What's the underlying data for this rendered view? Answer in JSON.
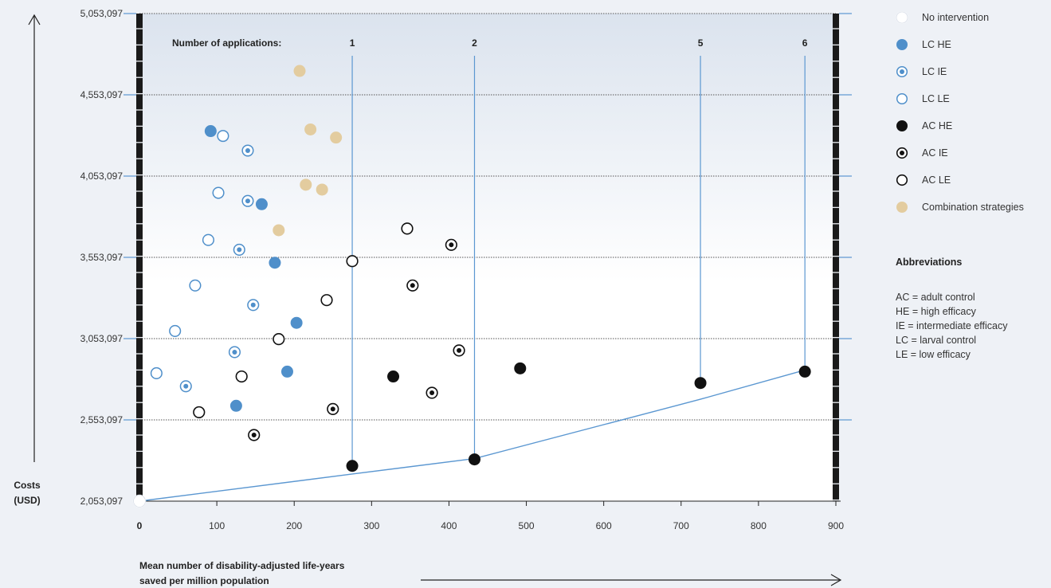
{
  "chart_data": {
    "type": "scatter",
    "xlabel_line1": "Mean number of disability-adjusted life-years",
    "xlabel_line2": "saved per million population",
    "ylabel_line1": "Costs",
    "ylabel_line2": "(USD)",
    "xlim": [
      0,
      900
    ],
    "ylim": [
      2053097,
      5053097
    ],
    "x_ticks": [
      0,
      100,
      200,
      300,
      400,
      500,
      600,
      700,
      800,
      900
    ],
    "x_tick_labels": [
      "0",
      "100",
      "200",
      "300",
      "400",
      "500",
      "600",
      "700",
      "800",
      "900"
    ],
    "y_ticks": [
      2053097,
      2553097,
      3053097,
      3553097,
      4053097,
      4553097,
      5053097
    ],
    "y_tick_labels": [
      "2,053,097",
      "2,553,097",
      "3,053,097",
      "3,553,097",
      "4,053,097",
      "4,553,097",
      "5,053,097"
    ],
    "grid": "horizontal dotted",
    "legend_position": "right",
    "applications_label": "Number of applications:",
    "applications": [
      {
        "label": "1",
        "x": 275
      },
      {
        "label": "2",
        "x": 433
      },
      {
        "label": "5",
        "x": 725
      },
      {
        "label": "6",
        "x": 860
      }
    ],
    "frontier": [
      [
        0,
        2053097
      ],
      [
        275,
        2220000
      ],
      [
        433,
        2315000
      ],
      [
        725,
        2680000
      ],
      [
        860,
        2860000
      ]
    ],
    "series": [
      {
        "name": "No intervention",
        "style": "white",
        "points": [
          [
            0,
            2053097
          ]
        ]
      },
      {
        "name": "LC HE",
        "style": "blue-filled",
        "points": [
          [
            92,
            4330000
          ],
          [
            158,
            3880000
          ],
          [
            175,
            3520000
          ],
          [
            203,
            3150000
          ],
          [
            191,
            2850000
          ],
          [
            125,
            2640000
          ]
        ]
      },
      {
        "name": "LC IE",
        "style": "blue-dot",
        "points": [
          [
            140,
            4210000
          ],
          [
            140,
            3900000
          ],
          [
            129,
            3600000
          ],
          [
            147,
            3260000
          ],
          [
            123,
            2970000
          ],
          [
            60,
            2760000
          ]
        ]
      },
      {
        "name": "LC LE",
        "style": "blue-ring",
        "points": [
          [
            108,
            4300000
          ],
          [
            102,
            3950000
          ],
          [
            89,
            3660000
          ],
          [
            72,
            3380000
          ],
          [
            46,
            3100000
          ],
          [
            22,
            2840000
          ]
        ]
      },
      {
        "name": "AC HE",
        "style": "black-filled",
        "points": [
          [
            275,
            2270000
          ],
          [
            433,
            2310000
          ],
          [
            328,
            2820000
          ],
          [
            492,
            2870000
          ],
          [
            725,
            2780000
          ],
          [
            860,
            2850000
          ]
        ]
      },
      {
        "name": "AC IE",
        "style": "black-dot",
        "points": [
          [
            148,
            2460000
          ],
          [
            250,
            2620000
          ],
          [
            378,
            2720000
          ],
          [
            413,
            2980000
          ],
          [
            353,
            3380000
          ],
          [
            403,
            3630000
          ]
        ]
      },
      {
        "name": "AC LE",
        "style": "black-ring",
        "points": [
          [
            77,
            2600000
          ],
          [
            132,
            2820000
          ],
          [
            180,
            3050000
          ],
          [
            242,
            3290000
          ],
          [
            275,
            3530000
          ],
          [
            346,
            3730000
          ]
        ]
      },
      {
        "name": "Combination strategies",
        "style": "tan-filled",
        "points": [
          [
            207,
            4700000
          ],
          [
            221,
            4340000
          ],
          [
            254,
            4290000
          ],
          [
            215,
            4000000
          ],
          [
            236,
            3970000
          ],
          [
            180,
            3720000
          ]
        ]
      }
    ]
  },
  "legend": {
    "items": [
      {
        "label": "No intervention",
        "style": "white"
      },
      {
        "label": "LC HE",
        "style": "blue-filled"
      },
      {
        "label": "LC IE",
        "style": "blue-dot"
      },
      {
        "label": "LC LE",
        "style": "blue-ring"
      },
      {
        "label": "AC HE",
        "style": "black-filled"
      },
      {
        "label": "AC IE",
        "style": "black-dot"
      },
      {
        "label": "AC LE",
        "style": "black-ring"
      },
      {
        "label": "Combination strategies",
        "style": "tan-filled"
      }
    ]
  },
  "abbreviations": {
    "title": "Abbreviations",
    "items": [
      "AC = adult control",
      "HE = high efficacy",
      "IE = intermediate efficacy",
      "LC = larval control",
      "LE = low efficacy"
    ]
  },
  "colors": {
    "blue": "#4f8fca",
    "blue_line": "#5b97d1",
    "black": "#111111",
    "tan": "#e3cc9f",
    "white": "#ffffff",
    "frame": "#1a1a1a"
  }
}
